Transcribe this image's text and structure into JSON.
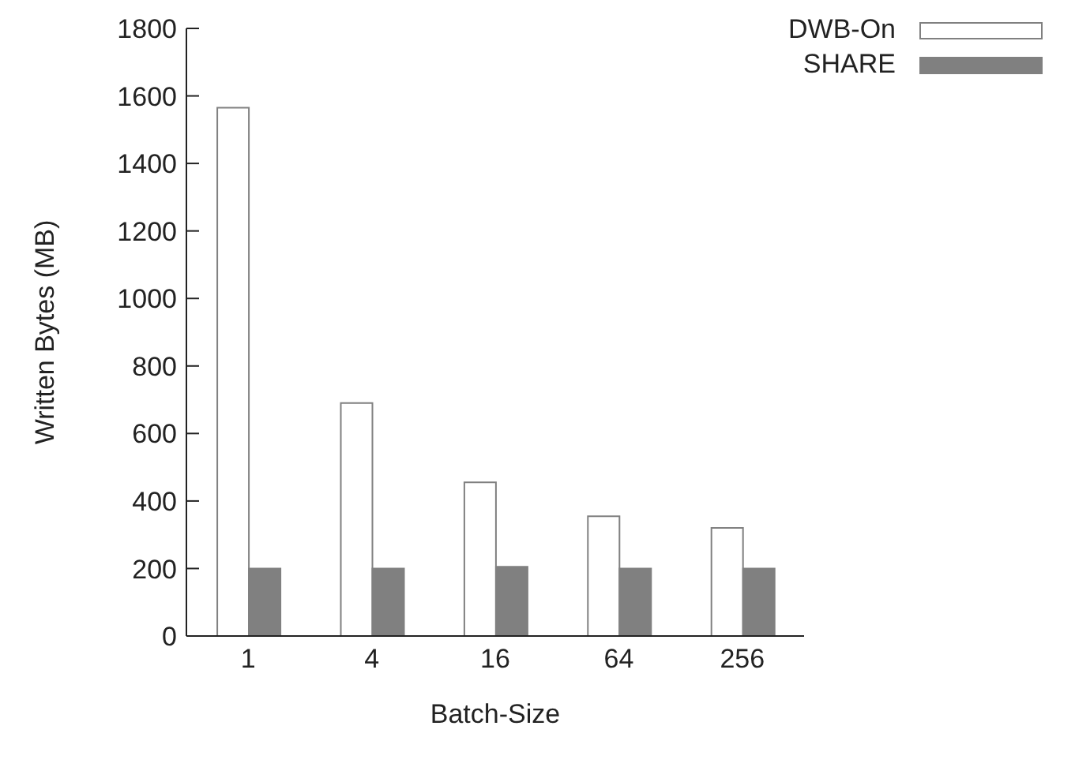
{
  "chart_data": {
    "type": "bar",
    "xlabel": "Batch-Size",
    "ylabel": "Written Bytes (MB)",
    "categories": [
      "1",
      "4",
      "16",
      "64",
      "256"
    ],
    "series": [
      {
        "name": "DWB-On",
        "color": "#ffffff",
        "values": [
          1565,
          690,
          455,
          355,
          320
        ]
      },
      {
        "name": "SHARE",
        "color": "#808080",
        "values": [
          200,
          200,
          205,
          200,
          200
        ]
      }
    ],
    "ylim": [
      0,
      1800
    ],
    "yticks": [
      0,
      200,
      400,
      600,
      800,
      1000,
      1200,
      1400,
      1600,
      1800
    ],
    "legend": "top right",
    "grid": false
  }
}
